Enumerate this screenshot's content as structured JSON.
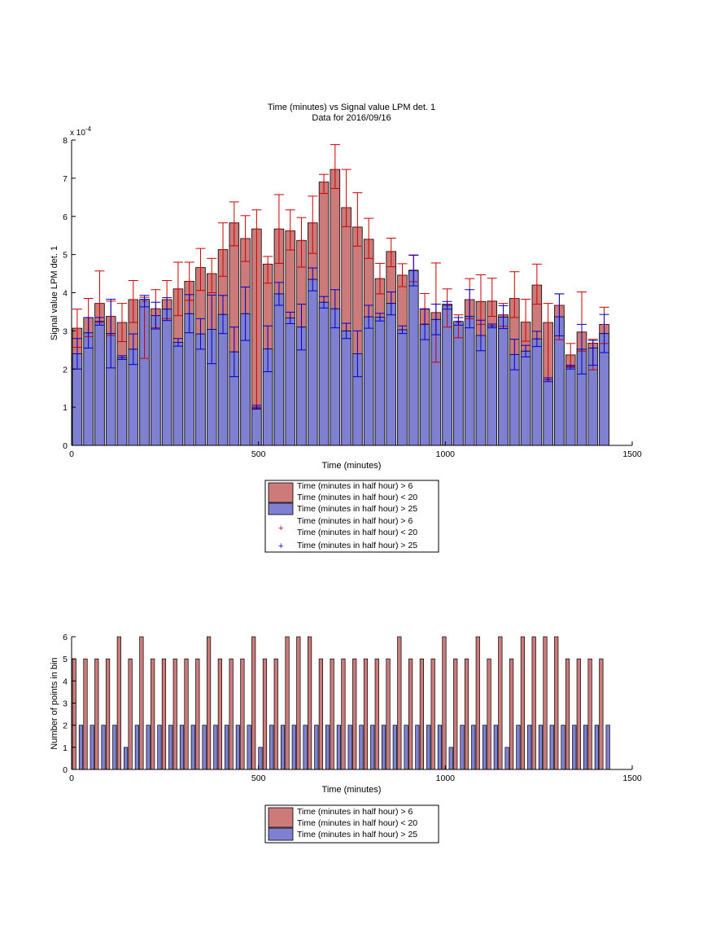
{
  "colors": {
    "series_a_fill": "#cc7a7a",
    "series_b_fill": "#7f80d1",
    "series_a_err": "#cc0000",
    "series_b_err": "#0000cc",
    "axis": "#000000"
  },
  "chart_data": [
    {
      "type": "bar",
      "title": "Time (minutes) vs Signal value LPM det. 1",
      "subtitle": "Data for 2016/09/16",
      "xlabel": "Time (minutes)",
      "ylabel": "Signal value LPM det. 1",
      "y_exponent_label": "x 10",
      "y_exponent_power": "-4",
      "xlim": [
        0,
        1500
      ],
      "ylim": [
        0,
        8
      ],
      "xticks": [
        "0",
        "500",
        "1000",
        "1500"
      ],
      "yticks": [
        "0",
        "1",
        "2",
        "3",
        "4",
        "5",
        "6",
        "7",
        "8"
      ],
      "grid": false,
      "legend_position": "below",
      "bin_minutes": 30,
      "x": [
        15,
        45,
        75,
        105,
        135,
        165,
        195,
        225,
        255,
        285,
        315,
        345,
        375,
        405,
        435,
        465,
        495,
        525,
        555,
        585,
        615,
        645,
        675,
        705,
        735,
        765,
        795,
        825,
        855,
        885,
        915,
        945,
        975,
        1005,
        1035,
        1065,
        1095,
        1125,
        1155,
        1185,
        1215,
        1245,
        1275,
        1305,
        1335,
        1365,
        1395,
        1425
      ],
      "series": [
        {
          "legend": "Time (minutes in half hour) > 6\nTime (minutes in half hour) < 20",
          "values": [
            3.07,
            3.35,
            3.72,
            3.38,
            3.22,
            3.82,
            3.78,
            3.58,
            3.82,
            4.1,
            4.3,
            4.66,
            4.5,
            5.13,
            5.83,
            5.42,
            5.67,
            4.75,
            5.67,
            5.62,
            5.37,
            5.83,
            6.9,
            7.23,
            6.23,
            5.72,
            5.4,
            4.37,
            5.08,
            4.46,
            4.59,
            3.58,
            3.48,
            3.7,
            3.22,
            3.82,
            3.77,
            3.78,
            3.42,
            3.85,
            3.23,
            4.2,
            3.22,
            3.67,
            2.37,
            2.97,
            2.68,
            3.17
          ],
          "err_low": [
            0.5,
            0.5,
            0.5,
            0.5,
            0.5,
            0.6,
            1.5,
            0.5,
            0.5,
            0.7,
            0.5,
            0.6,
            0.5,
            0.7,
            0.6,
            0.6,
            4.7,
            0.5,
            0.9,
            0.5,
            0.7,
            0.8,
            0.3,
            0.5,
            0.5,
            0.5,
            0.5,
            0.4,
            0.4,
            0.3,
            0.3,
            0.4,
            1.3,
            0.6,
            0.4,
            0.5,
            0.6,
            0.4,
            0.3,
            0.5,
            0.5,
            0.5,
            1.5,
            0.9,
            0.3,
            0.5,
            0.7,
            0.5
          ],
          "err_high": [
            0.5,
            0.5,
            0.85,
            0.4,
            0.5,
            0.5,
            0.1,
            0.5,
            0.5,
            0.7,
            0.5,
            0.5,
            0.4,
            0.7,
            0.55,
            0.6,
            0.5,
            0.2,
            0.9,
            0.55,
            0.6,
            0.7,
            0.2,
            0.65,
            1.0,
            0.9,
            0.55,
            0.4,
            0.35,
            0.3,
            0.4,
            0.4,
            1.3,
            0.4,
            0.2,
            0.55,
            0.7,
            0.6,
            0.3,
            0.7,
            0.6,
            0.55,
            0.5,
            0.3,
            0.3,
            1.05,
            0.1,
            0.45
          ]
        },
        {
          "legend": "Time (minutes in half hour) > 25",
          "values": [
            2.4,
            2.95,
            3.25,
            2.93,
            2.3,
            2.52,
            3.83,
            3.4,
            3.57,
            2.7,
            3.45,
            2.92,
            3.04,
            3.43,
            2.45,
            3.45,
            1.0,
            2.53,
            3.97,
            3.34,
            3.1,
            4.35,
            3.75,
            3.58,
            3.0,
            2.4,
            3.37,
            3.36,
            3.72,
            3.03,
            4.58,
            3.17,
            3.3,
            3.67,
            3.25,
            3.38,
            2.88,
            3.13,
            3.36,
            2.38,
            2.47,
            2.79,
            1.72,
            3.37,
            2.05,
            2.52,
            2.55,
            2.93
          ],
          "err_low": [
            0.4,
            0.4,
            0.1,
            0.9,
            0.05,
            0.4,
            0.2,
            0.35,
            0.3,
            0.1,
            0.5,
            0.4,
            0.9,
            0.5,
            0.65,
            0.7,
            0.05,
            0.6,
            0.3,
            0.15,
            0.6,
            0.3,
            0.15,
            0.5,
            0.2,
            0.6,
            0.3,
            0.1,
            0.3,
            0.1,
            0.4,
            0.4,
            0.4,
            0.1,
            0.1,
            0.3,
            0.4,
            0.05,
            0.3,
            0.4,
            0.15,
            0.2,
            0.05,
            0.5,
            0.05,
            0.65,
            0.45,
            0.5
          ],
          "err_high": [
            0.4,
            0.4,
            0.1,
            0.9,
            0.05,
            0.4,
            0.1,
            0.35,
            0.3,
            0.1,
            0.5,
            0.4,
            0.9,
            0.5,
            0.65,
            0.7,
            0.05,
            0.6,
            0.3,
            0.15,
            0.6,
            0.3,
            0.15,
            0.5,
            0.2,
            0.6,
            0.3,
            0.1,
            0.3,
            0.1,
            0.4,
            0.4,
            0.4,
            0.1,
            0.1,
            0.7,
            0.4,
            0.05,
            0.3,
            0.4,
            0.15,
            0.2,
            0.05,
            0.6,
            0.05,
            0.65,
            0.2,
            0.5
          ]
        }
      ],
      "legend_errorbars": [
        "Time (minutes in half hour) > 6\nTime (minutes in half hour) < 20",
        "Time (minutes in half hour) > 25"
      ],
      "legend_marker": "+"
    },
    {
      "type": "bar",
      "xlabel": "Time (minutes)",
      "ylabel": "Number of points in bin",
      "xlim": [
        0,
        1500
      ],
      "ylim": [
        0,
        6
      ],
      "xticks": [
        "0",
        "500",
        "1000",
        "1500"
      ],
      "yticks": [
        "0",
        "1",
        "2",
        "3",
        "4",
        "5",
        "6"
      ],
      "grid": false,
      "legend_position": "below",
      "series": [
        {
          "legend": "Time (minutes in half hour) > 6\nTime (minutes in half hour) < 20",
          "x": [
            7,
            37,
            67,
            97,
            127,
            157,
            187,
            217,
            247,
            277,
            307,
            337,
            367,
            397,
            427,
            457,
            487,
            517,
            547,
            577,
            607,
            637,
            667,
            697,
            727,
            757,
            787,
            817,
            847,
            877,
            907,
            937,
            967,
            997,
            1027,
            1057,
            1087,
            1117,
            1147,
            1177,
            1207,
            1237,
            1267,
            1297,
            1327,
            1357,
            1387,
            1417
          ],
          "values": [
            5,
            5,
            5,
            5,
            6,
            5,
            6,
            5,
            5,
            5,
            5,
            5,
            6,
            5,
            5,
            5,
            6,
            5,
            5,
            6,
            6,
            6,
            5,
            5,
            5,
            5,
            5,
            5,
            5,
            6,
            5,
            5,
            5,
            6,
            5,
            5,
            6,
            5,
            6,
            5,
            6,
            6,
            6,
            6,
            5,
            5,
            5,
            5
          ]
        },
        {
          "legend": "Time (minutes in half hour) > 25",
          "x": [
            25,
            55,
            85,
            115,
            145,
            175,
            205,
            235,
            265,
            295,
            325,
            355,
            385,
            415,
            445,
            475,
            505,
            535,
            565,
            595,
            625,
            655,
            685,
            715,
            745,
            775,
            805,
            835,
            865,
            895,
            925,
            955,
            985,
            1015,
            1045,
            1075,
            1105,
            1135,
            1165,
            1195,
            1225,
            1255,
            1285,
            1315,
            1345,
            1375,
            1405,
            1435
          ],
          "values": [
            2,
            2,
            2,
            2,
            1,
            2,
            2,
            2,
            2,
            2,
            2,
            2,
            2,
            2,
            2,
            2,
            1,
            2,
            2,
            2,
            2,
            2,
            2,
            2,
            2,
            2,
            2,
            2,
            2,
            2,
            2,
            2,
            2,
            1,
            2,
            2,
            2,
            2,
            1,
            2,
            2,
            2,
            2,
            2,
            2,
            2,
            2,
            2
          ]
        }
      ]
    }
  ]
}
